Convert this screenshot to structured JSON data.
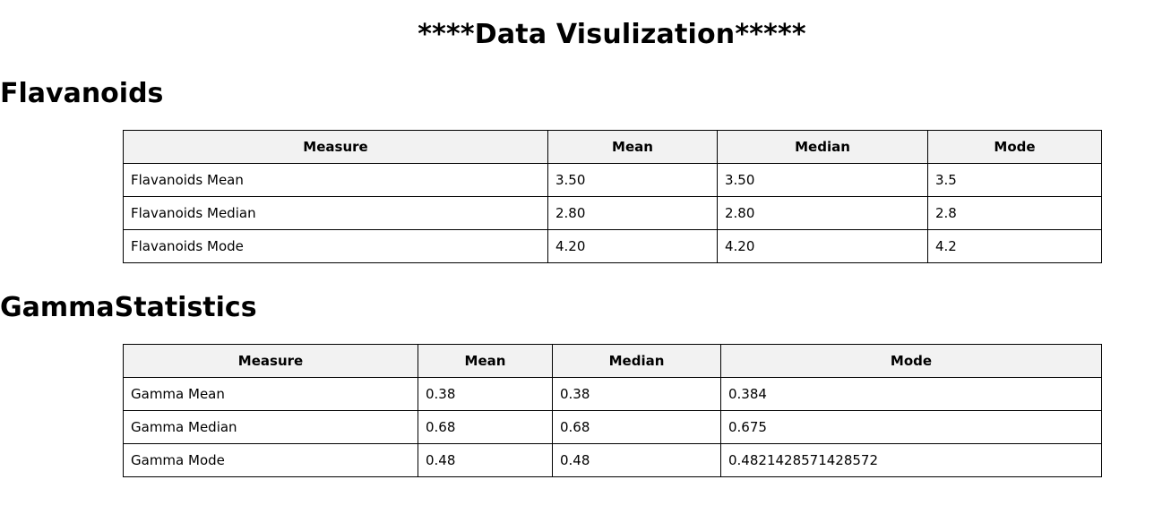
{
  "page": {
    "title": "****Data Visulization*****"
  },
  "flavanoids": {
    "heading": "Flavanoids",
    "headers": [
      "Measure",
      "Mean",
      "Median",
      "Mode"
    ],
    "rows": [
      [
        "Flavanoids Mean",
        "3.50",
        "3.50",
        "3.5"
      ],
      [
        "Flavanoids Median",
        "2.80",
        "2.80",
        "2.8"
      ],
      [
        "Flavanoids Mode",
        "4.20",
        "4.20",
        "4.2"
      ]
    ]
  },
  "gamma": {
    "heading": "GammaStatistics",
    "headers": [
      "Measure",
      "Mean",
      "Median",
      "Mode"
    ],
    "rows": [
      [
        "Gamma Mean",
        "0.38",
        "0.38",
        "0.384"
      ],
      [
        "Gamma Median",
        "0.68",
        "0.68",
        "0.675"
      ],
      [
        "Gamma Mode",
        "0.48",
        "0.48",
        "0.4821428571428572"
      ]
    ]
  }
}
